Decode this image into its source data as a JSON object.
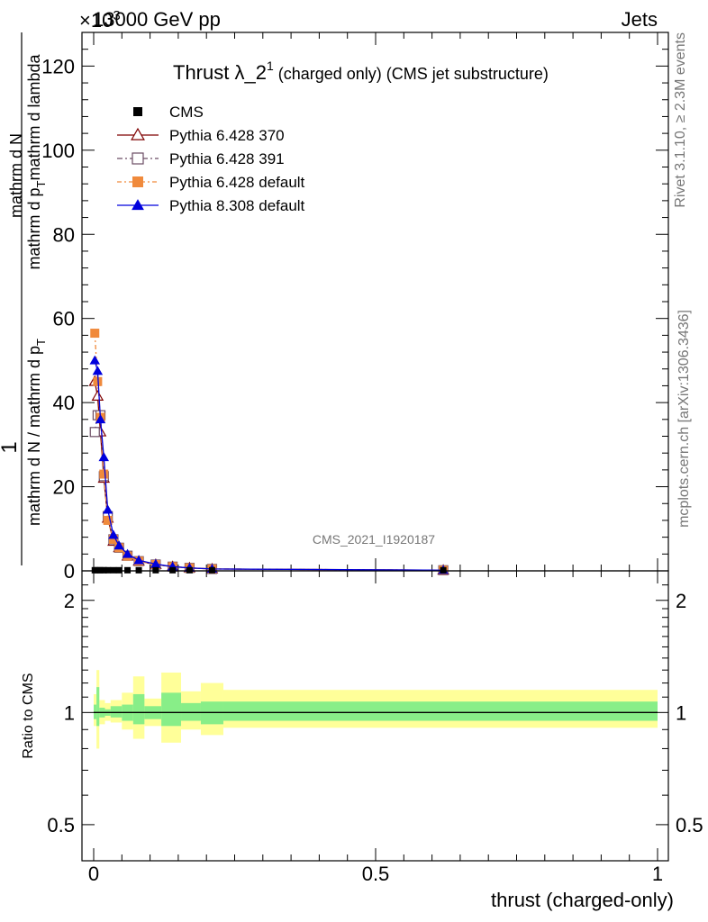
{
  "header": {
    "energy_label": "13000 GeV pp",
    "category_label": "Jets",
    "exponent_label": "×10",
    "exponent_sup": "3"
  },
  "side_labels": {
    "rivet": "Rivet 3.1.10, ≥ 2.3M events",
    "mcplots": "mcplots.cern.ch [arXiv:1306.3436]"
  },
  "watermark": "CMS_2021_I1920187",
  "chart_data": [
    {
      "type": "line",
      "title_main": "Thrust λ_2",
      "title_sup": "1",
      "title_rest": " (charged only) (CMS jet substructure)",
      "ylabel_parts": [
        "1",
        "mathrm d N / mathrm d p",
        "T",
        "mathrm d N",
        "mathrm d p",
        "T",
        "mathrm d lambda"
      ],
      "ylabel": "1 / (mathrm d N / mathrm d p_T) · mathrm d²N / (mathrm d p_T mathrm d lambda)",
      "xlim": [
        0,
        1
      ],
      "ylim": [
        0,
        128000
      ],
      "yticks": [
        0,
        20000,
        40000,
        60000,
        80000,
        100000,
        120000
      ],
      "ytick_labels": [
        "0",
        "20",
        "40",
        "60",
        "80",
        "100",
        "120"
      ],
      "legend_position": "top-left",
      "legend": [
        "CMS",
        "Pythia 6.428 370",
        "Pythia 6.428 391",
        "Pythia 6.428 default",
        "Pythia 8.308 default"
      ],
      "series": [
        {
          "name": "CMS",
          "color": "#000000",
          "marker": "square",
          "x": [
            0.002,
            0.007,
            0.012,
            0.018,
            0.025,
            0.035,
            0.045,
            0.06,
            0.08,
            0.11,
            0.14,
            0.17,
            0.21,
            0.62
          ],
          "y": [
            150,
            150,
            150,
            150,
            150,
            150,
            150,
            150,
            150,
            150,
            150,
            150,
            150,
            150
          ]
        },
        {
          "name": "Pythia 6.428 370",
          "color": "#7f0000",
          "marker": "triangle-open",
          "dash": "",
          "x": [
            0.002,
            0.007,
            0.012,
            0.018,
            0.025,
            0.035,
            0.045,
            0.06,
            0.08,
            0.11,
            0.14,
            0.17,
            0.21,
            0.62
          ],
          "y": [
            45000,
            41500,
            33000,
            22000,
            12500,
            7000,
            5500,
            3500,
            2300,
            1500,
            1000,
            700,
            450,
            150
          ]
        },
        {
          "name": "Pythia 6.428 391",
          "color": "#6b4c63",
          "marker": "square-open",
          "dash": "6,3,2,3",
          "x": [
            0.002,
            0.007,
            0.012,
            0.018,
            0.025,
            0.035,
            0.045,
            0.06,
            0.08,
            0.11,
            0.14,
            0.17,
            0.21,
            0.62
          ],
          "y": [
            33000,
            37000,
            37000,
            22500,
            13000,
            7500,
            5500,
            3600,
            2300,
            1500,
            1000,
            700,
            450,
            150
          ]
        },
        {
          "name": "Pythia 6.428 default",
          "color": "#f08a3c",
          "marker": "square",
          "dash": "5,3,2,3",
          "x": [
            0.002,
            0.007,
            0.012,
            0.018,
            0.025,
            0.035,
            0.045,
            0.06,
            0.08,
            0.11,
            0.14,
            0.17,
            0.21,
            0.62
          ],
          "y": [
            56500,
            45000,
            36500,
            23000,
            12000,
            7500,
            5500,
            3500,
            2300,
            1500,
            1000,
            700,
            450,
            150
          ]
        },
        {
          "name": "Pythia 8.308 default",
          "color": "#0000dd",
          "marker": "triangle",
          "dash": "",
          "x": [
            0.002,
            0.007,
            0.012,
            0.018,
            0.025,
            0.035,
            0.045,
            0.06,
            0.08,
            0.11,
            0.14,
            0.17,
            0.21,
            0.62
          ],
          "y": [
            50000,
            47500,
            36000,
            27000,
            14500,
            8500,
            6000,
            4000,
            2500,
            1600,
            1000,
            700,
            450,
            150
          ]
        }
      ]
    },
    {
      "type": "area",
      "ylabel": "Ratio to CMS",
      "xlabel": "thrust (charged-only)",
      "xlim": [
        0,
        1
      ],
      "ylim": [
        0.4,
        2.4
      ],
      "y_scale": "log",
      "yticks": [
        0.5,
        1,
        2
      ],
      "ytick_labels": [
        "0.5",
        "1",
        "2"
      ],
      "xticks": [
        0,
        0.5,
        1
      ],
      "xtick_labels": [
        "0",
        "0.5",
        "1"
      ],
      "bands": [
        {
          "name": "stat+syst",
          "color": "#ffff99",
          "bins": [
            [
              0,
              0.005,
              0.92,
              1.12
            ],
            [
              0.005,
              0.01,
              0.8,
              1.3
            ],
            [
              0.01,
              0.02,
              0.93,
              1.08
            ],
            [
              0.02,
              0.03,
              0.95,
              1.06
            ],
            [
              0.03,
              0.05,
              0.94,
              1.08
            ],
            [
              0.05,
              0.07,
              0.9,
              1.13
            ],
            [
              0.07,
              0.09,
              0.85,
              1.25
            ],
            [
              0.09,
              0.12,
              0.92,
              1.09
            ],
            [
              0.12,
              0.155,
              0.83,
              1.28
            ],
            [
              0.155,
              0.19,
              0.9,
              1.14
            ],
            [
              0.19,
              0.23,
              0.87,
              1.2
            ],
            [
              0.23,
              1.0,
              0.91,
              1.15
            ]
          ]
        },
        {
          "name": "stat",
          "color": "#88ee88",
          "bins": [
            [
              0,
              0.005,
              0.96,
              1.05
            ],
            [
              0.005,
              0.01,
              0.92,
              1.17
            ],
            [
              0.01,
              0.02,
              0.97,
              1.03
            ],
            [
              0.02,
              0.03,
              0.98,
              1.02
            ],
            [
              0.03,
              0.05,
              0.97,
              1.04
            ],
            [
              0.05,
              0.07,
              0.95,
              1.05
            ],
            [
              0.07,
              0.09,
              0.93,
              1.12
            ],
            [
              0.09,
              0.12,
              0.96,
              1.04
            ],
            [
              0.12,
              0.155,
              0.92,
              1.13
            ],
            [
              0.155,
              0.19,
              0.95,
              1.06
            ],
            [
              0.19,
              0.23,
              0.93,
              1.07
            ],
            [
              0.23,
              1.0,
              0.95,
              1.07
            ]
          ]
        }
      ],
      "reference": 1
    }
  ]
}
